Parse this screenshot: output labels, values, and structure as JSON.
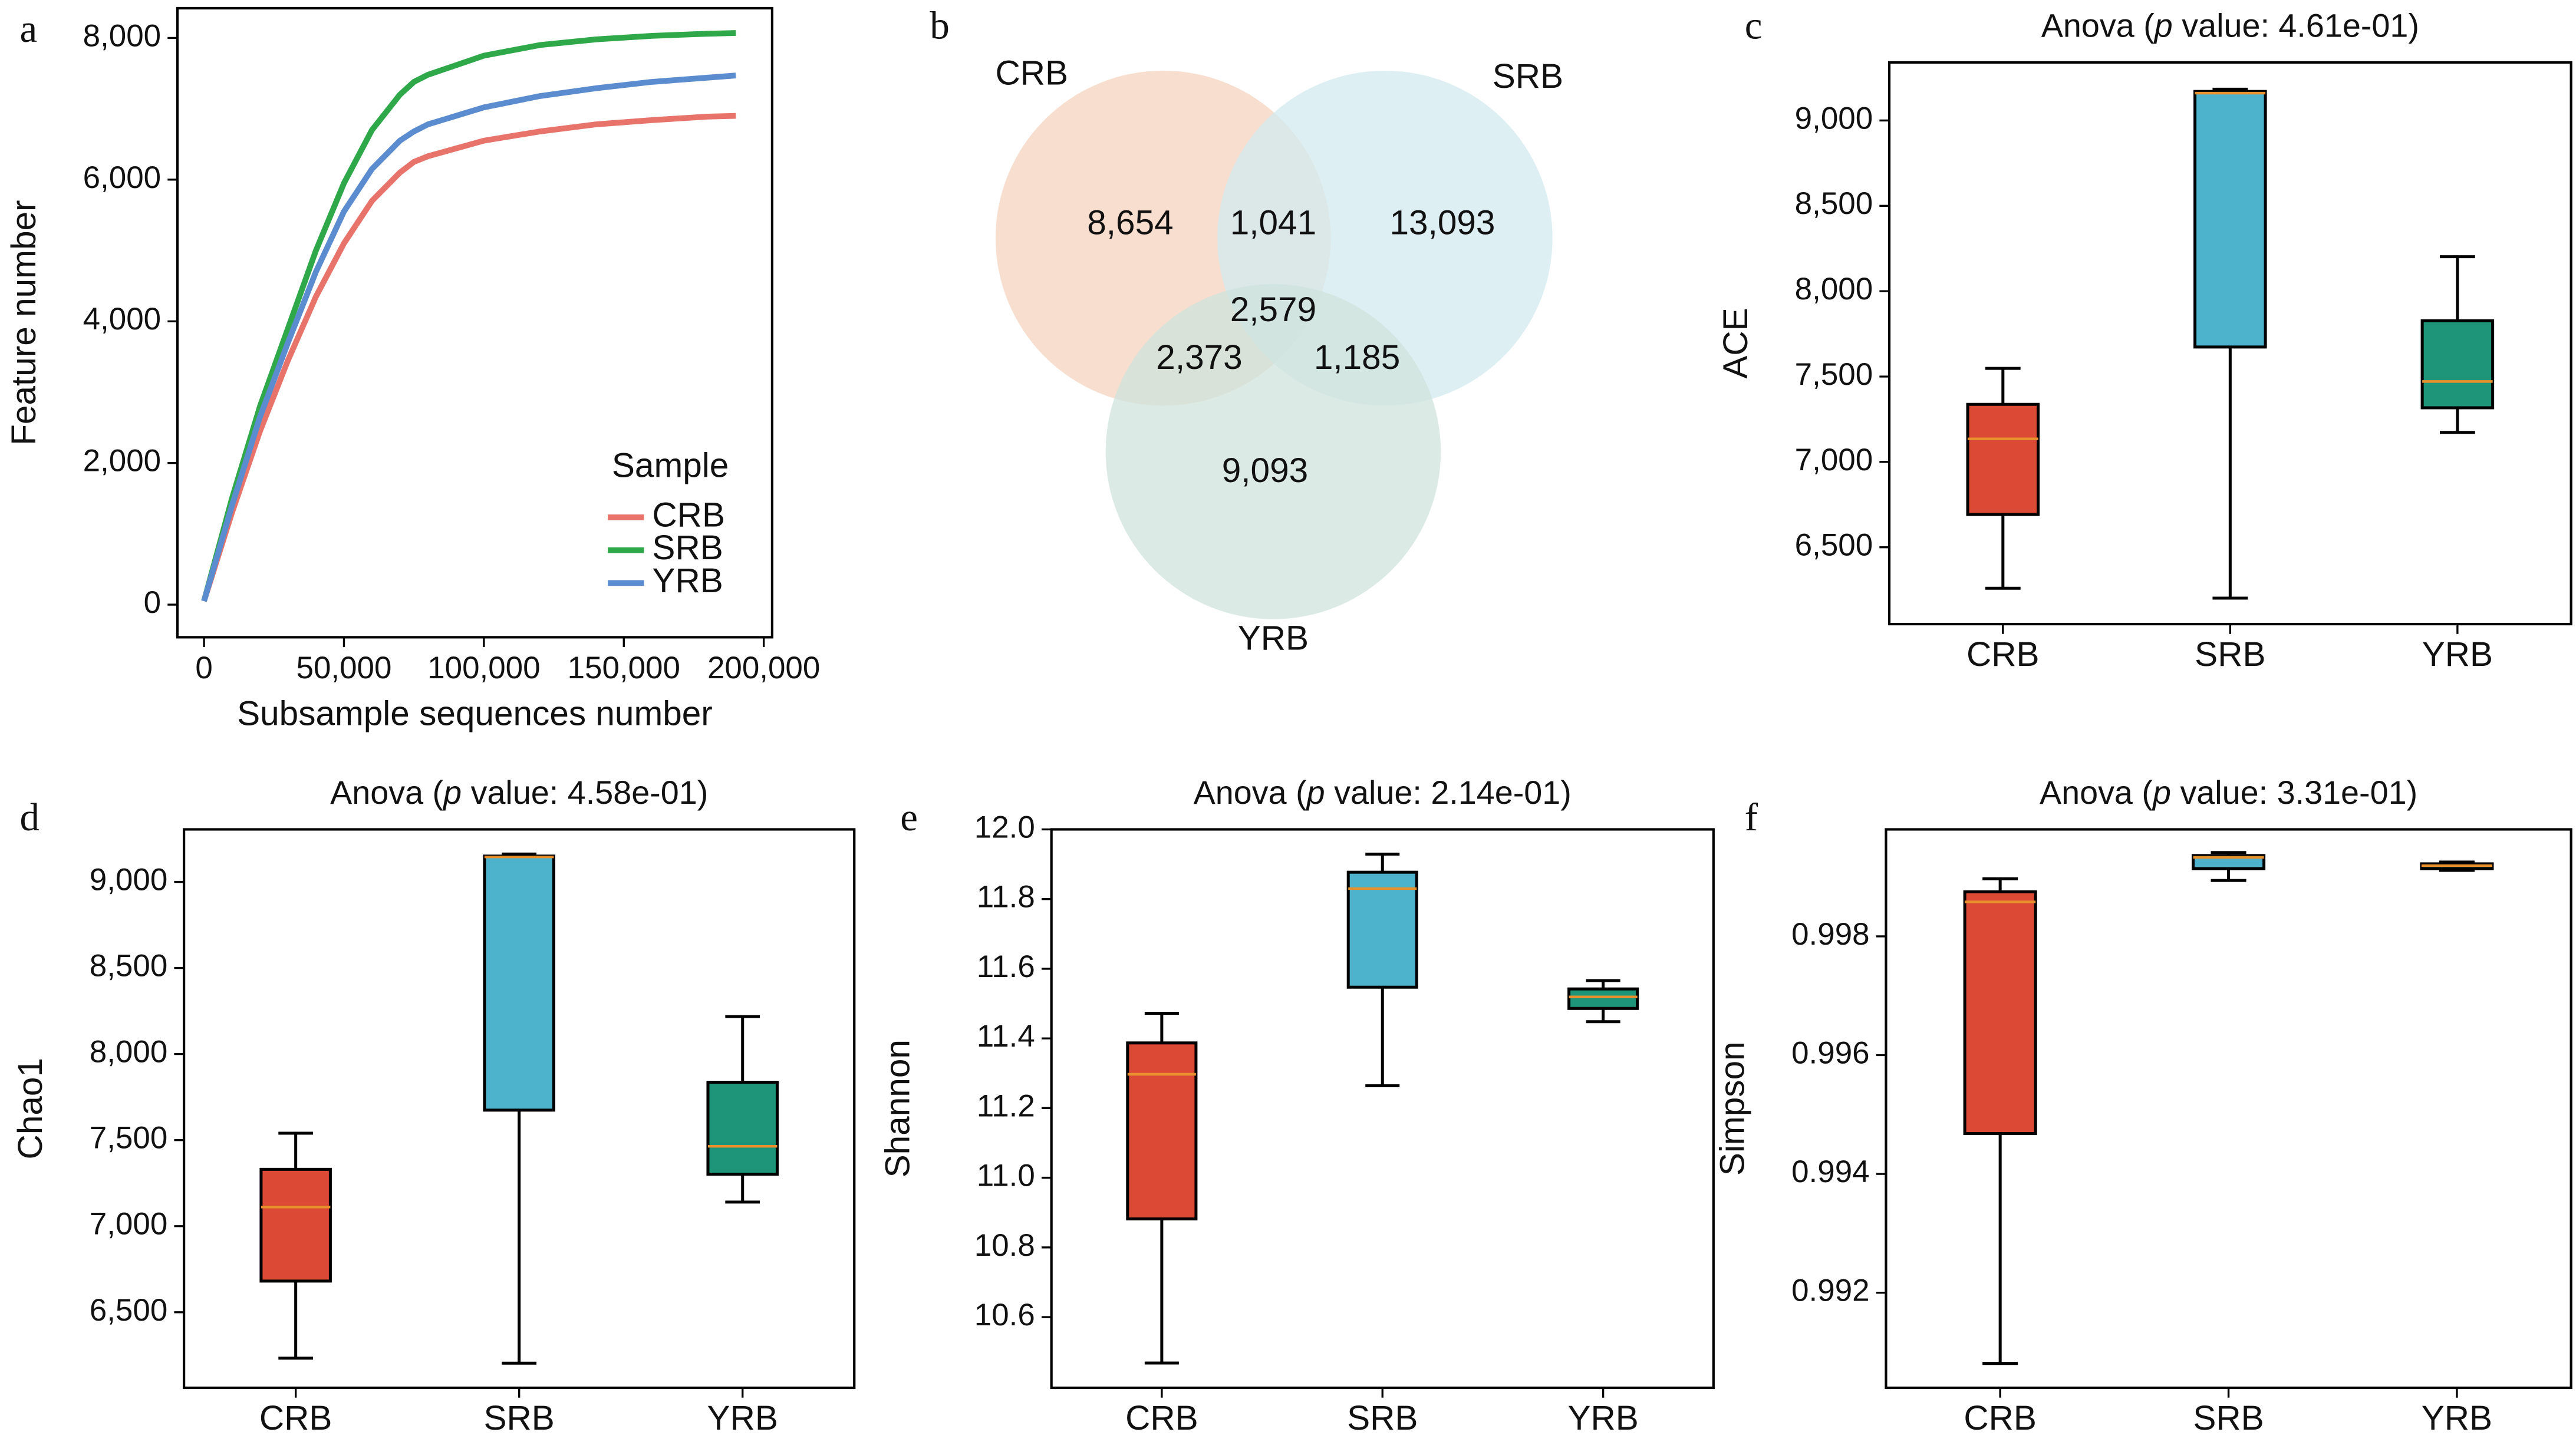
{
  "chart_data": [
    {
      "type": "line",
      "panel": "a",
      "xlabel": "Subsample sequences number",
      "ylabel": "Feature number",
      "x": [
        0,
        10000,
        20000,
        30000,
        40000,
        50000,
        60000,
        70000,
        75000,
        80000,
        100000,
        120000,
        140000,
        160000,
        180000,
        190000
      ],
      "series": [
        {
          "name": "CRB",
          "color": "#e8736b",
          "values": [
            50,
            1300,
            2450,
            3450,
            4350,
            5100,
            5700,
            6100,
            6250,
            6330,
            6550,
            6680,
            6780,
            6840,
            6890,
            6900
          ]
        },
        {
          "name": "SRB",
          "color": "#2fa84a",
          "values": [
            50,
            1500,
            2800,
            3900,
            5000,
            5950,
            6700,
            7200,
            7380,
            7480,
            7750,
            7900,
            7980,
            8030,
            8060,
            8070
          ]
        },
        {
          "name": "YRB",
          "color": "#5b8ccf",
          "values": [
            50,
            1400,
            2650,
            3700,
            4700,
            5550,
            6150,
            6550,
            6680,
            6780,
            7020,
            7180,
            7290,
            7380,
            7440,
            7470
          ]
        }
      ],
      "legend_title": "Sample",
      "legend": "lower right",
      "xlim": [
        -9500,
        203000
      ],
      "xticks": [
        0,
        {
          "value": 50000,
          "label": "50,000"
        },
        {
          "value": 100000,
          "label": "100,000"
        },
        {
          "value": 150000,
          "label": "150,000"
        },
        {
          "value": 200000,
          "label": "200,000"
        }
      ],
      "ylim": [
        -460,
        8420
      ],
      "yticks": [
        0,
        {
          "value": 2000,
          "label": "2,000"
        },
        {
          "value": 4000,
          "label": "4,000"
        },
        {
          "value": 6000,
          "label": "6,000"
        },
        {
          "value": 8000,
          "label": "8,000"
        }
      ]
    },
    {
      "type": "venn",
      "panel": "b",
      "sets": [
        "CRB",
        "SRB",
        "YRB"
      ],
      "colors": [
        "#f5d3bf",
        "#d3eaf0",
        "#cfe3dc"
      ],
      "values": [
        8654,
        1041,
        13093,
        2579,
        2373,
        1185,
        9093
      ],
      "value_labels": [
        "8,654",
        "1,041",
        "13,093",
        "2,579",
        "2,373",
        "1,185",
        "9,093"
      ]
    },
    {
      "type": "box",
      "panel": "c",
      "title": [
        "Anova (",
        "p",
        " value: 4.61e-01)"
      ],
      "ylabel": "ACE",
      "categories": [
        "CRB",
        "SRB",
        "YRB"
      ],
      "colors": [
        "#dc4a35",
        "#4db2cb",
        "#1e9478"
      ],
      "median_color": "#e8912c",
      "boxes": [
        {
          "whislo": 6260,
          "q1": 6692,
          "med": 7135,
          "q3": 7337,
          "whishi": 7548
        },
        {
          "whislo": 6202,
          "q1": 7673,
          "med": 9160,
          "q3": 9170,
          "whishi": 9183
        },
        {
          "whislo": 7173,
          "q1": 7317,
          "med": 7471,
          "q3": 7827,
          "whishi": 8202
        }
      ],
      "ylim": [
        6050,
        9340
      ],
      "yticks": [
        {
          "value": 6500,
          "label": "6,500"
        },
        {
          "value": 7000,
          "label": "7,000"
        },
        {
          "value": 7500,
          "label": "7,500"
        },
        {
          "value": 8000,
          "label": "8,000"
        },
        {
          "value": 8500,
          "label": "8,500"
        },
        {
          "value": 9000,
          "label": "9,000"
        }
      ]
    },
    {
      "type": "box",
      "panel": "d",
      "title": [
        "Anova (",
        "p",
        " value: 4.58e-01)"
      ],
      "ylabel": "Chao1",
      "categories": [
        "CRB",
        "SRB",
        "YRB"
      ],
      "colors": [
        "#dc4a35",
        "#4db2cb",
        "#1e9478"
      ],
      "median_color": "#e8912c",
      "boxes": [
        {
          "whislo": 6233,
          "q1": 6681,
          "med": 7111,
          "q3": 7330,
          "whishi": 7540
        },
        {
          "whislo": 6204,
          "q1": 7674,
          "med": 9145,
          "q3": 9150,
          "whishi": 9162
        },
        {
          "whislo": 7140,
          "q1": 7302,
          "med": 7464,
          "q3": 7836,
          "whishi": 8218
        }
      ],
      "ylim": [
        6061,
        9305
      ],
      "yticks": [
        {
          "value": 6500,
          "label": "6,500"
        },
        {
          "value": 7000,
          "label": "7,000"
        },
        {
          "value": 7500,
          "label": "7,500"
        },
        {
          "value": 8000,
          "label": "8,000"
        },
        {
          "value": 8500,
          "label": "8,500"
        },
        {
          "value": 9000,
          "label": "9,000"
        }
      ]
    },
    {
      "type": "box",
      "panel": "e",
      "title": [
        "Anova (",
        "p",
        " value: 2.14e-01)"
      ],
      "ylabel": "Shannon",
      "categories": [
        "CRB",
        "SRB",
        "YRB"
      ],
      "colors": [
        "#dc4a35",
        "#4db2cb",
        "#1e9478"
      ],
      "median_color": "#e8912c",
      "boxes": [
        {
          "whislo": 10.468,
          "q1": 10.882,
          "med": 11.297,
          "q3": 11.387,
          "whishi": 11.472
        },
        {
          "whislo": 11.264,
          "q1": 11.547,
          "med": 11.83,
          "q3": 11.877,
          "whishi": 11.929
        },
        {
          "whislo": 11.448,
          "q1": 11.486,
          "med": 11.519,
          "q3": 11.542,
          "whishi": 11.566
        }
      ],
      "ylim": [
        10.397,
        12.0
      ],
      "yticks": [
        10.6,
        10.8,
        {
          "value": 11,
          "label": "11.0"
        },
        11.2,
        11.4,
        11.6,
        11.8,
        {
          "value": 12,
          "label": "12.0"
        }
      ]
    },
    {
      "type": "box",
      "panel": "f",
      "title": [
        "Anova (",
        "p",
        " value: 3.31e-01)"
      ],
      "ylabel": "Simpson",
      "categories": [
        "CRB",
        "SRB",
        "YRB"
      ],
      "colors": [
        "#dc4a35",
        "#4db2cb",
        "#1e9478"
      ],
      "median_color": "#e8912c",
      "boxes": [
        {
          "whislo": 0.99081,
          "q1": 0.99468,
          "med": 0.99858,
          "q3": 0.99875,
          "whishi": 0.99897
        },
        {
          "whislo": 0.99894,
          "q1": 0.99914,
          "med": 0.99933,
          "q3": 0.99936,
          "whishi": 0.99941
        },
        {
          "whislo": 0.99911,
          "q1": 0.99914,
          "med": 0.99919,
          "q3": 0.99922,
          "whishi": 0.99925
        }
      ],
      "ylim": [
        0.9904,
        0.9998
      ],
      "yticks": [
        0.992,
        0.994,
        0.996,
        0.998
      ]
    }
  ]
}
